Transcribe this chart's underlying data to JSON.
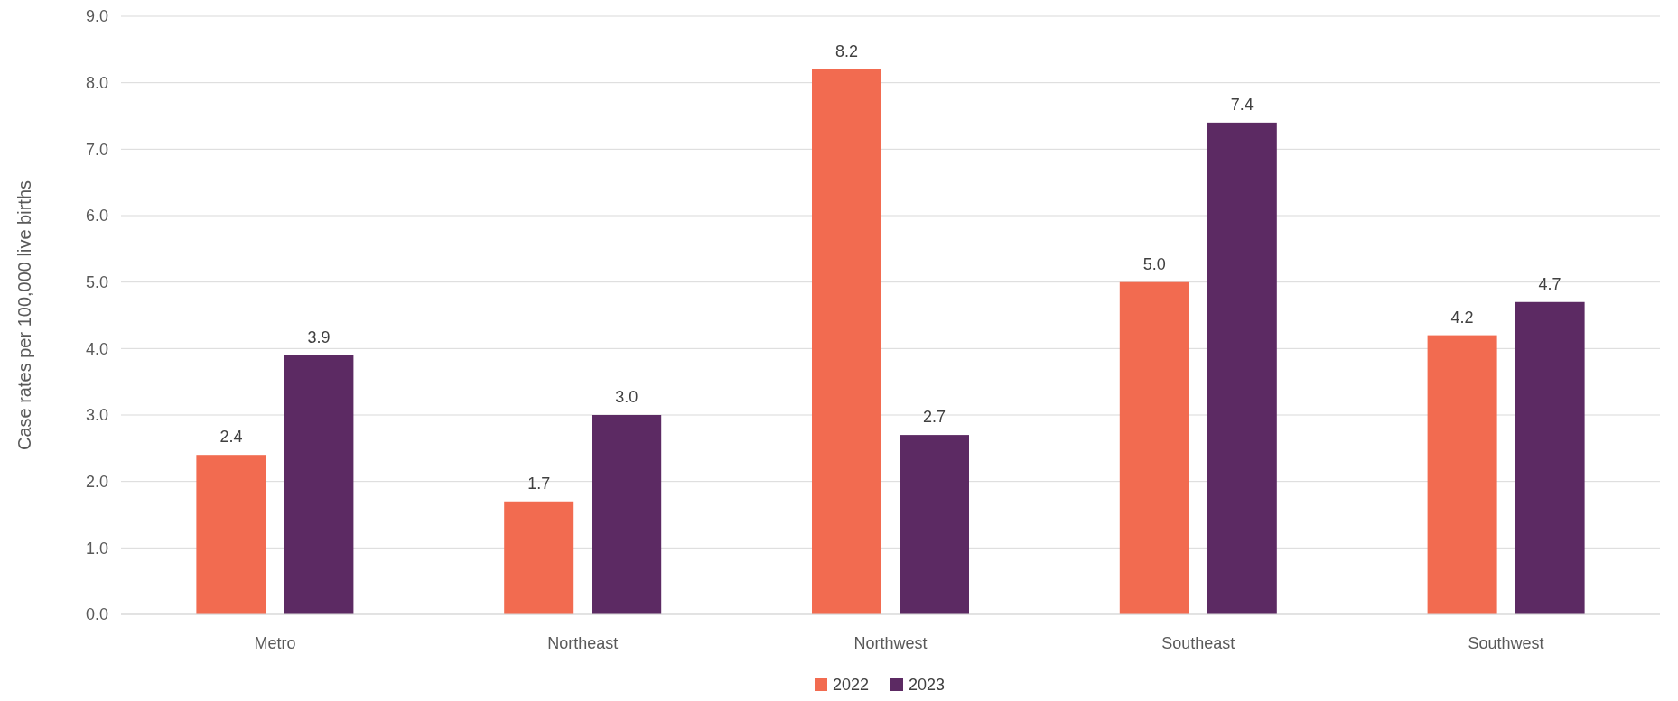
{
  "chart_data": {
    "type": "bar",
    "ylabel": "Case rates per 100,000 live births",
    "categories": [
      "Metro",
      "Northeast",
      "Northwest",
      "Southeast",
      "Southwest"
    ],
    "series": [
      {
        "name": "2022",
        "color": "#f26b50",
        "values": [
          2.4,
          1.7,
          8.2,
          5.0,
          4.2
        ],
        "value_labels": [
          "2.4",
          "1.7",
          "8.2",
          "5.0",
          "4.2"
        ]
      },
      {
        "name": "2023",
        "color": "#5c2a63",
        "values": [
          3.9,
          3.0,
          2.7,
          7.4,
          4.7
        ],
        "value_labels": [
          "3.9",
          "3.0",
          "2.7",
          "7.4",
          "4.7"
        ]
      }
    ],
    "ylim": [
      0,
      9
    ],
    "yticks": [
      {
        "value": 0,
        "label": "0.0"
      },
      {
        "value": 1,
        "label": "1.0"
      },
      {
        "value": 2,
        "label": "2.0"
      },
      {
        "value": 3,
        "label": "3.0"
      },
      {
        "value": 4,
        "label": "4.0"
      },
      {
        "value": 5,
        "label": "5.0"
      },
      {
        "value": 6,
        "label": "6.0"
      },
      {
        "value": 7,
        "label": "7.0"
      },
      {
        "value": 8,
        "label": "8.0"
      },
      {
        "value": 9,
        "label": "9.0"
      }
    ],
    "grid": "y",
    "legend": "bottom"
  }
}
